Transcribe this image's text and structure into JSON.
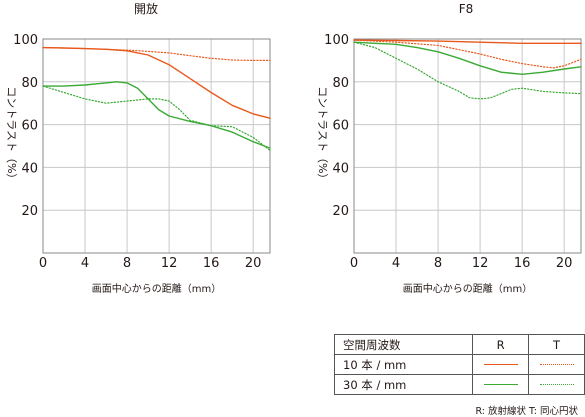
{
  "chart_data": [
    {
      "type": "line",
      "title": "開放",
      "xlabel": "画面中心からの距離（mm）",
      "ylabel": "コントラスト（%）",
      "xlim": [
        0,
        21.6
      ],
      "ylim": [
        0,
        100
      ],
      "xticks": [
        0,
        4,
        8,
        12,
        16,
        20
      ],
      "yticks": [
        20,
        40,
        60,
        80,
        100
      ],
      "grid": true,
      "series": [
        {
          "name": "10本/mm R",
          "color": "#e8581c",
          "style": "solid",
          "x": [
            0,
            2,
            4,
            6,
            8,
            10,
            12,
            14,
            16,
            18,
            20,
            21.6
          ],
          "y": [
            96,
            95.8,
            95.5,
            95.2,
            94.5,
            92.5,
            88,
            81.5,
            75,
            69,
            65,
            63
          ]
        },
        {
          "name": "10本/mm T",
          "color": "#e8581c",
          "style": "dotted",
          "x": [
            0,
            2,
            4,
            6,
            8,
            10,
            12,
            14,
            16,
            18,
            20,
            21.6
          ],
          "y": [
            96,
            95.8,
            95.5,
            95.2,
            94.8,
            94.2,
            93.5,
            92.2,
            91,
            90.2,
            90,
            90
          ]
        },
        {
          "name": "30本/mm R",
          "color": "#3aaa35",
          "style": "solid",
          "x": [
            0,
            2,
            4,
            5,
            6,
            7,
            8,
            9,
            10,
            11,
            12,
            14,
            16,
            18,
            20,
            21.6
          ],
          "y": [
            78,
            78,
            78.5,
            79,
            79.5,
            80,
            79.5,
            77,
            72,
            67,
            64,
            61.5,
            59.5,
            56.5,
            52,
            49
          ]
        },
        {
          "name": "30本/mm T",
          "color": "#3aaa35",
          "style": "dotted",
          "x": [
            0,
            2,
            4,
            6,
            8,
            10,
            11,
            12,
            13,
            14,
            16,
            18,
            20,
            21.6
          ],
          "y": [
            78,
            75,
            72,
            70,
            71,
            72,
            72,
            71,
            67,
            62,
            59.5,
            59,
            54,
            48
          ]
        }
      ]
    },
    {
      "type": "line",
      "title": "F8",
      "xlabel": "画面中心からの距離（mm）",
      "ylabel": "コントラスト（%）",
      "xlim": [
        0,
        21.6
      ],
      "ylim": [
        0,
        100
      ],
      "xticks": [
        0,
        4,
        8,
        12,
        16,
        20
      ],
      "yticks": [
        20,
        40,
        60,
        80,
        100
      ],
      "grid": true,
      "series": [
        {
          "name": "10本/mm R",
          "color": "#e8581c",
          "style": "solid",
          "x": [
            0,
            4,
            8,
            12,
            16,
            20,
            21.6
          ],
          "y": [
            99.5,
            99.3,
            99,
            98.5,
            98,
            98,
            98
          ]
        },
        {
          "name": "10本/mm T",
          "color": "#e8581c",
          "style": "dotted",
          "x": [
            0,
            4,
            8,
            12,
            14,
            16,
            18,
            19,
            20,
            21.6
          ],
          "y": [
            99.5,
            98.5,
            97,
            93,
            90.5,
            88.5,
            87,
            86.5,
            87.5,
            90.5
          ]
        },
        {
          "name": "30本/mm R",
          "color": "#3aaa35",
          "style": "solid",
          "x": [
            0,
            2,
            4,
            6,
            8,
            10,
            12,
            14,
            16,
            18,
            20,
            21.6
          ],
          "y": [
            98.5,
            98,
            97.5,
            96,
            94,
            91,
            87.5,
            84.5,
            83.5,
            84.5,
            86,
            87
          ]
        },
        {
          "name": "30本/mm T",
          "color": "#3aaa35",
          "style": "dotted",
          "x": [
            0,
            2,
            4,
            6,
            8,
            10,
            11,
            12,
            13,
            14,
            15,
            16,
            18,
            20,
            21.6
          ],
          "y": [
            98.5,
            96,
            91,
            86,
            80,
            75.5,
            72.5,
            72,
            72.5,
            74.5,
            76.5,
            77,
            75.5,
            74.8,
            74.5
          ]
        }
      ]
    }
  ],
  "legend": {
    "header": "空間周波数",
    "col_r": "R",
    "col_t": "T",
    "rows": [
      {
        "label": "10 本 / mm",
        "color": "#e8581c"
      },
      {
        "label": "30 本 / mm",
        "color": "#3aaa35"
      }
    ]
  },
  "footnote": "R: 放射線状  T: 同心円状"
}
